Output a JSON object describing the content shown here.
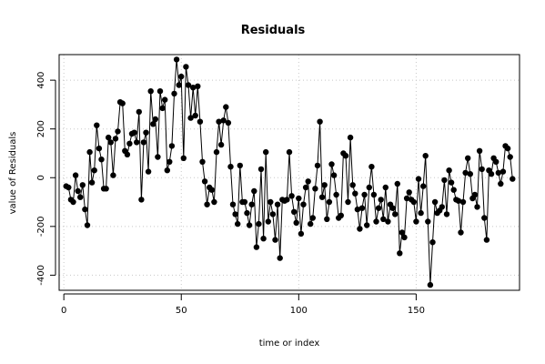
{
  "chart_data": {
    "type": "line",
    "marker": "point",
    "title": "Residuals",
    "xlabel": "time or index",
    "ylabel": "value of Residuals",
    "xlim": [
      -2,
      194
    ],
    "ylim": [
      -462,
      505
    ],
    "x_ticks": [
      0,
      50,
      100,
      150
    ],
    "y_ticks": [
      -400,
      -200,
      0,
      200,
      400
    ],
    "grid": true,
    "legend": "none",
    "color": "#000000",
    "series": [
      {
        "x": [
          1,
          2,
          3,
          4,
          5,
          6,
          7,
          8,
          9,
          10,
          11,
          12,
          13,
          14,
          15,
          16,
          17,
          18,
          19,
          20,
          21,
          22,
          23,
          24,
          25,
          26,
          27,
          28,
          29,
          30,
          31,
          32,
          33,
          34,
          35,
          36,
          37,
          38,
          39,
          40,
          41,
          42,
          43,
          44,
          45,
          46,
          47,
          48,
          49,
          50,
          51,
          52,
          53,
          54,
          55,
          56,
          57,
          58,
          59,
          60,
          61,
          62,
          63,
          64,
          65,
          66,
          67,
          68,
          69,
          70,
          71,
          72,
          73,
          74,
          75,
          76,
          77,
          78,
          79,
          80,
          81,
          82,
          83,
          84,
          85,
          86,
          87,
          88,
          89,
          90,
          91,
          92,
          93,
          94,
          95,
          96,
          97,
          98,
          99,
          100,
          101,
          102,
          103,
          104,
          105,
          106,
          107,
          108,
          109,
          110,
          111,
          112,
          113,
          114,
          115,
          116,
          117,
          118,
          119,
          120,
          121,
          122,
          123,
          124,
          125,
          126,
          127,
          128,
          129,
          130,
          131,
          132,
          133,
          134,
          135,
          136,
          137,
          138,
          139,
          140,
          141,
          142,
          143,
          144,
          145,
          146,
          147,
          148,
          149,
          150,
          151,
          152,
          153,
          154,
          155,
          156,
          157,
          158,
          159,
          160,
          161,
          162,
          163,
          164,
          165,
          166,
          167,
          168,
          169,
          170,
          171,
          172,
          173,
          174,
          175,
          176,
          177,
          178,
          179,
          180,
          181,
          182,
          183,
          184,
          185,
          186,
          187,
          188,
          189,
          190,
          191
        ],
        "values": [
          -35,
          -40,
          -90,
          -100,
          10,
          -55,
          -80,
          -30,
          -130,
          -195,
          105,
          -20,
          30,
          215,
          120,
          75,
          -45,
          -45,
          165,
          145,
          10,
          160,
          190,
          310,
          305,
          110,
          95,
          140,
          180,
          185,
          145,
          270,
          -90,
          145,
          185,
          25,
          355,
          220,
          240,
          85,
          355,
          285,
          320,
          30,
          65,
          130,
          345,
          485,
          380,
          415,
          80,
          455,
          380,
          245,
          370,
          255,
          375,
          230,
          65,
          -15,
          -110,
          -40,
          -50,
          -100,
          105,
          230,
          135,
          235,
          290,
          225,
          45,
          -110,
          -150,
          -190,
          50,
          -100,
          -100,
          -145,
          -195,
          -110,
          -55,
          -285,
          -190,
          35,
          -250,
          105,
          -180,
          -100,
          -150,
          -255,
          -110,
          -330,
          -90,
          -95,
          -90,
          105,
          -75,
          -140,
          -185,
          -85,
          -230,
          -110,
          -40,
          -15,
          -190,
          -165,
          -45,
          50,
          230,
          -80,
          -30,
          -170,
          -100,
          55,
          10,
          -70,
          -165,
          -155,
          100,
          90,
          -100,
          165,
          -30,
          -65,
          -130,
          -210,
          -125,
          -70,
          -195,
          -40,
          45,
          -70,
          -180,
          -125,
          -90,
          -170,
          -40,
          -180,
          -110,
          -125,
          -150,
          -25,
          -310,
          -225,
          -245,
          -85,
          -60,
          -90,
          -100,
          -180,
          -5,
          -145,
          -35,
          90,
          -180,
          -440,
          -265,
          -100,
          -145,
          -135,
          -120,
          -10,
          -150,
          30,
          -20,
          -50,
          -90,
          -95,
          -225,
          -100,
          20,
          80,
          15,
          -85,
          -70,
          -120,
          110,
          35,
          -165,
          -255,
          30,
          15,
          80,
          65,
          20,
          -25,
          25,
          130,
          120,
          85,
          -5
        ]
      }
    ]
  }
}
